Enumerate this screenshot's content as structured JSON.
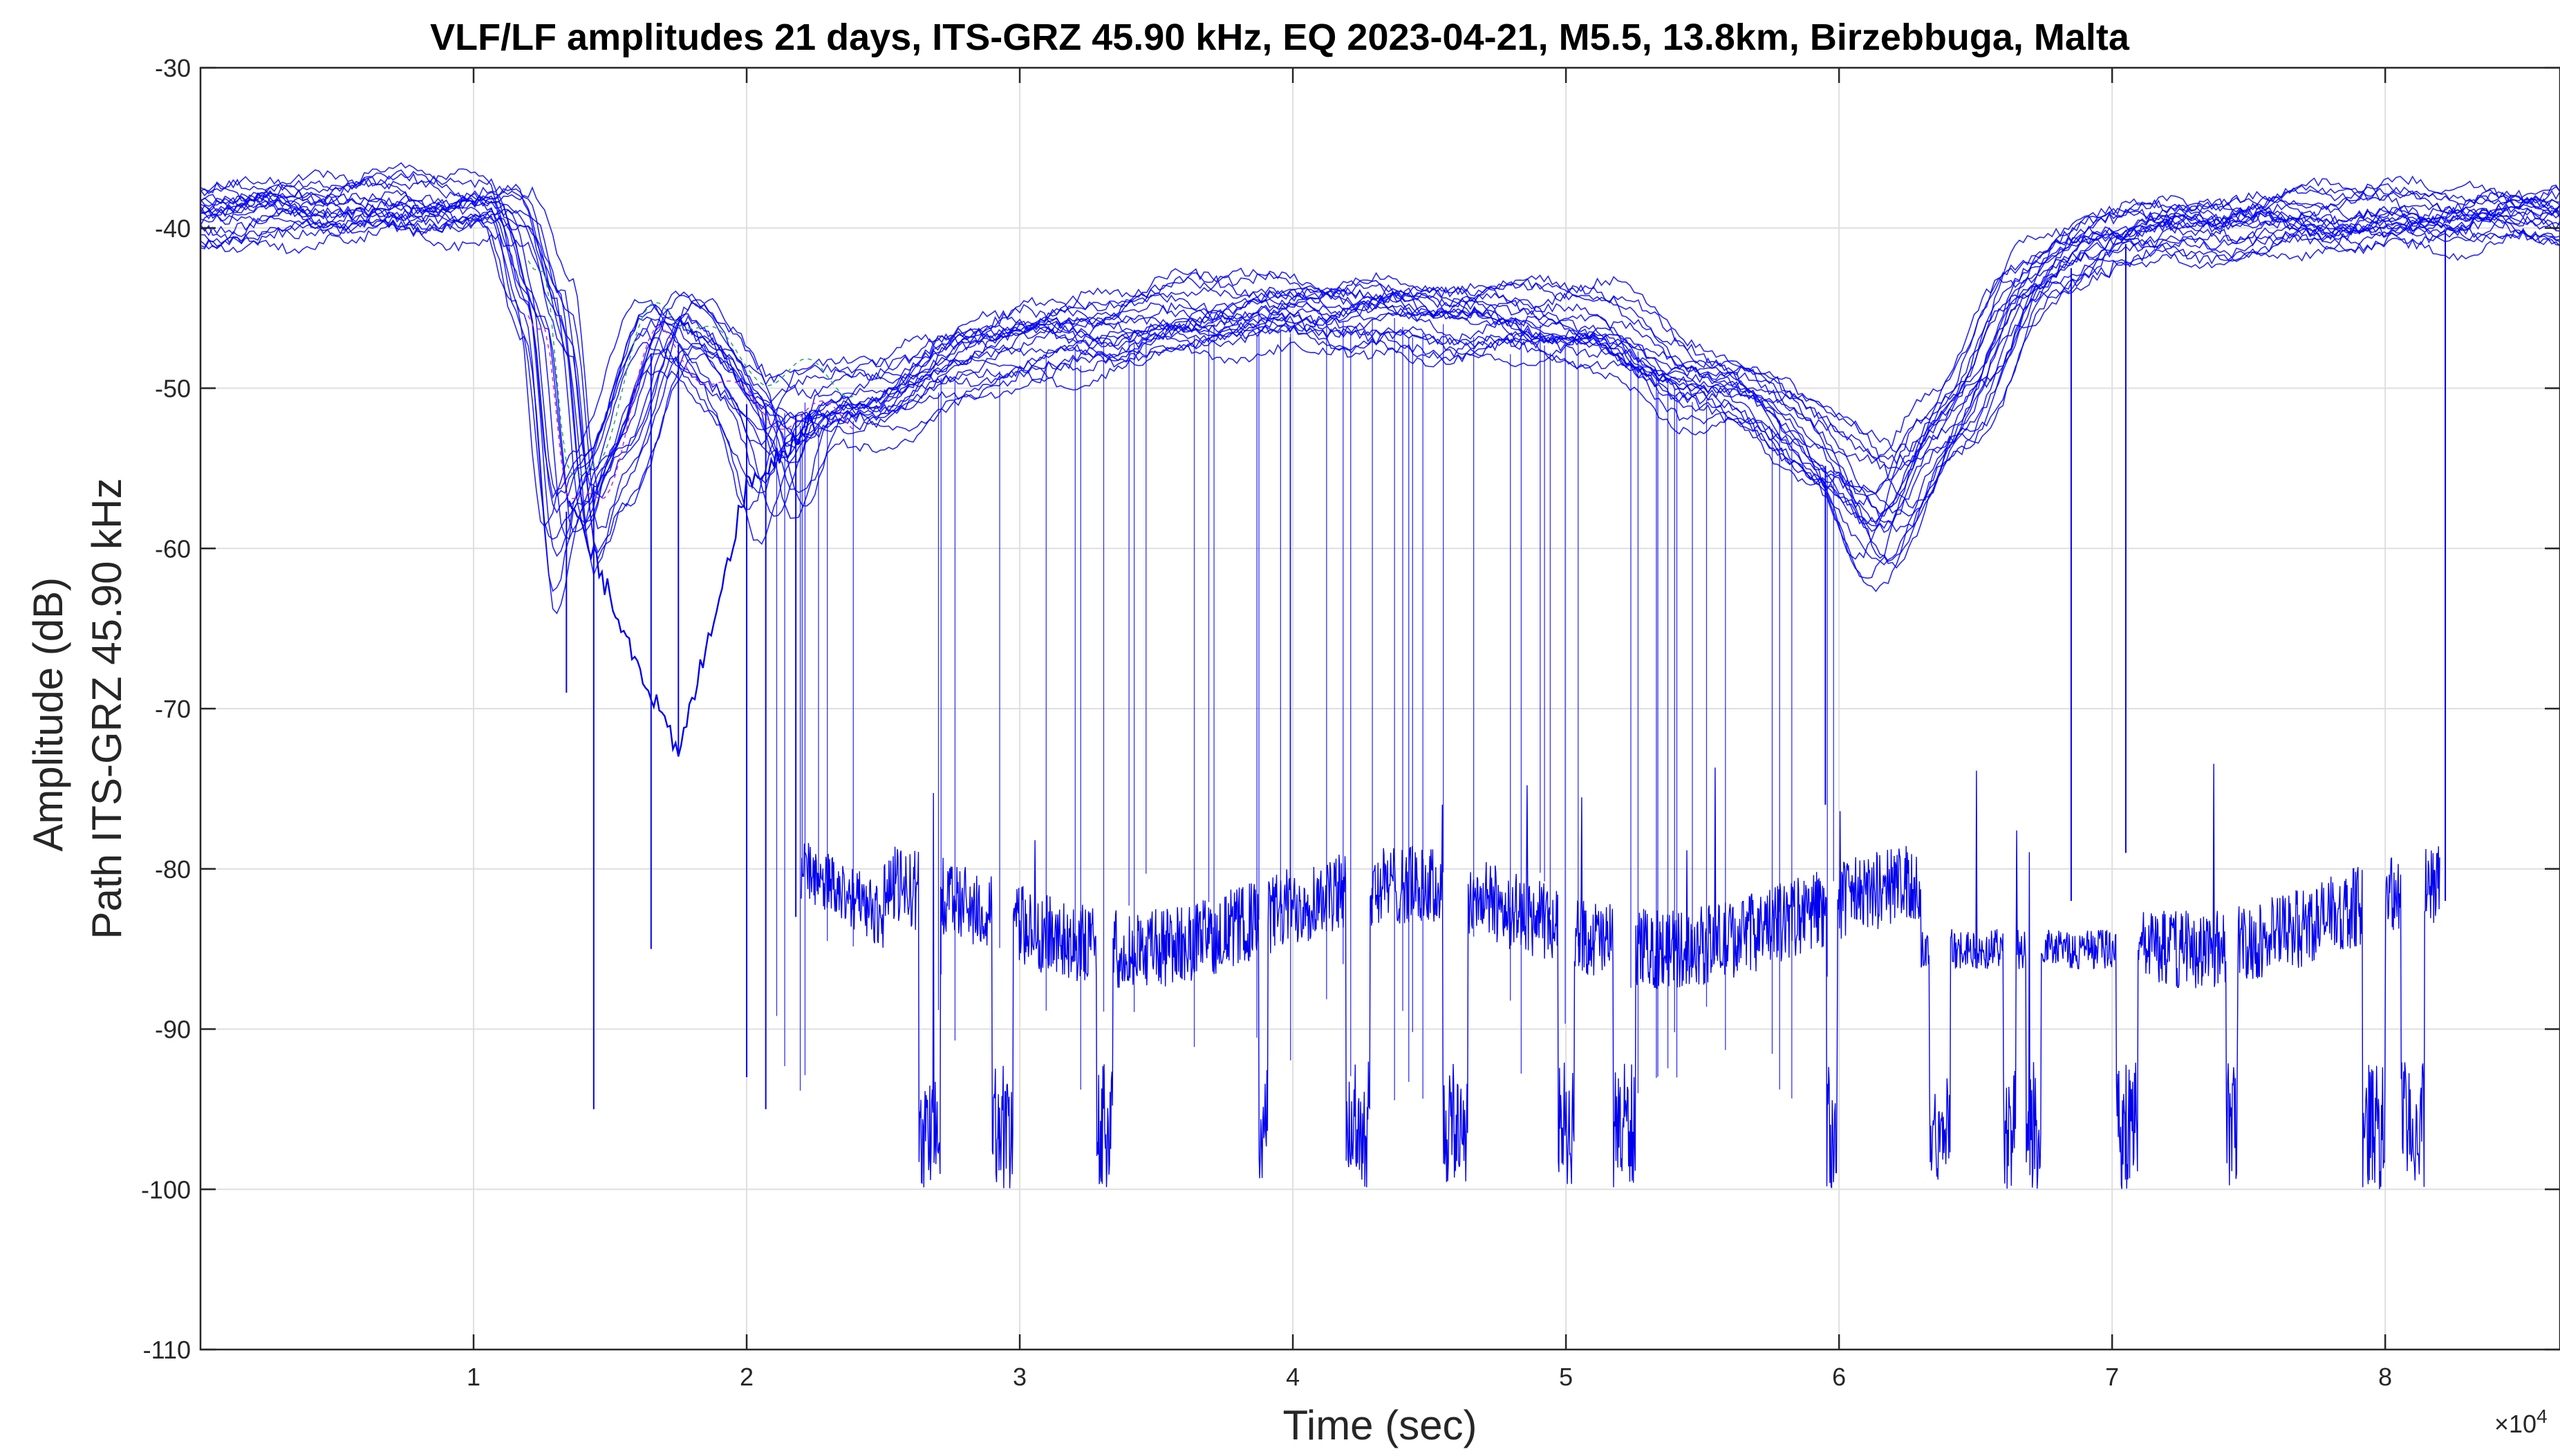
{
  "chart_data": {
    "type": "line",
    "title": "VLF/LF amplitudes 21 days, ITS-GRZ 45.90 kHz, EQ 2023-04-21, M5.5, 13.8km, Birzebbuga, Malta",
    "xlabel": "Time (sec)",
    "ylabel_lines": [
      "Amplitude (dB)",
      "Path ITS-GRZ 45.90 kHz"
    ],
    "x_exponent_label": "×10",
    "x_exponent_power": "4",
    "xlim": [
      0,
      86400
    ],
    "ylim": [
      -110,
      -30
    ],
    "x_ticks": [
      {
        "value": 10000,
        "label": "1"
      },
      {
        "value": 20000,
        "label": "2"
      },
      {
        "value": 30000,
        "label": "3"
      },
      {
        "value": 40000,
        "label": "4"
      },
      {
        "value": 50000,
        "label": "5"
      },
      {
        "value": 60000,
        "label": "6"
      },
      {
        "value": 70000,
        "label": "7"
      },
      {
        "value": 80000,
        "label": "8"
      }
    ],
    "y_ticks": [
      {
        "value": -30,
        "label": "-30"
      },
      {
        "value": -40,
        "label": "-40"
      },
      {
        "value": -50,
        "label": "-50"
      },
      {
        "value": -60,
        "label": "-60"
      },
      {
        "value": -70,
        "label": "-70"
      },
      {
        "value": -80,
        "label": "-80"
      },
      {
        "value": -90,
        "label": "-90"
      },
      {
        "value": -100,
        "label": "-100"
      },
      {
        "value": -110,
        "label": "-110"
      }
    ],
    "grid": true,
    "series_color": "#0000ee",
    "accent_colors": [
      "#cc33cc",
      "#33aa66"
    ],
    "day_curve_keypoints": {
      "x": [
        0,
        11000,
        12500,
        13500,
        14500,
        17000,
        20000,
        23000,
        30000,
        40000,
        50000,
        56000,
        60000,
        62000,
        64000,
        67000,
        70000,
        86400
      ],
      "y": [
        -39,
        -38.5,
        -45,
        -57,
        -55,
        -46,
        -50,
        -51,
        -47,
        -45,
        -46,
        -50,
        -54,
        -54,
        -52,
        -43,
        -40,
        -39
      ]
    },
    "noisy_segment": {
      "x_range": [
        22000,
        82000
      ],
      "typical_level": -83,
      "drop_level": -96,
      "lowest": -101
    },
    "spikes": [
      {
        "x": 13400,
        "y": -69
      },
      {
        "x": 14400,
        "y": -95
      },
      {
        "x": 16500,
        "y": -85
      },
      {
        "x": 17500,
        "y": -73
      },
      {
        "x": 20000,
        "y": -93
      },
      {
        "x": 20700,
        "y": -95
      },
      {
        "x": 21800,
        "y": -83
      },
      {
        "x": 59500,
        "y": -76
      },
      {
        "x": 68500,
        "y": -82
      },
      {
        "x": 70500,
        "y": -79
      },
      {
        "x": 82200,
        "y": -82
      }
    ]
  }
}
